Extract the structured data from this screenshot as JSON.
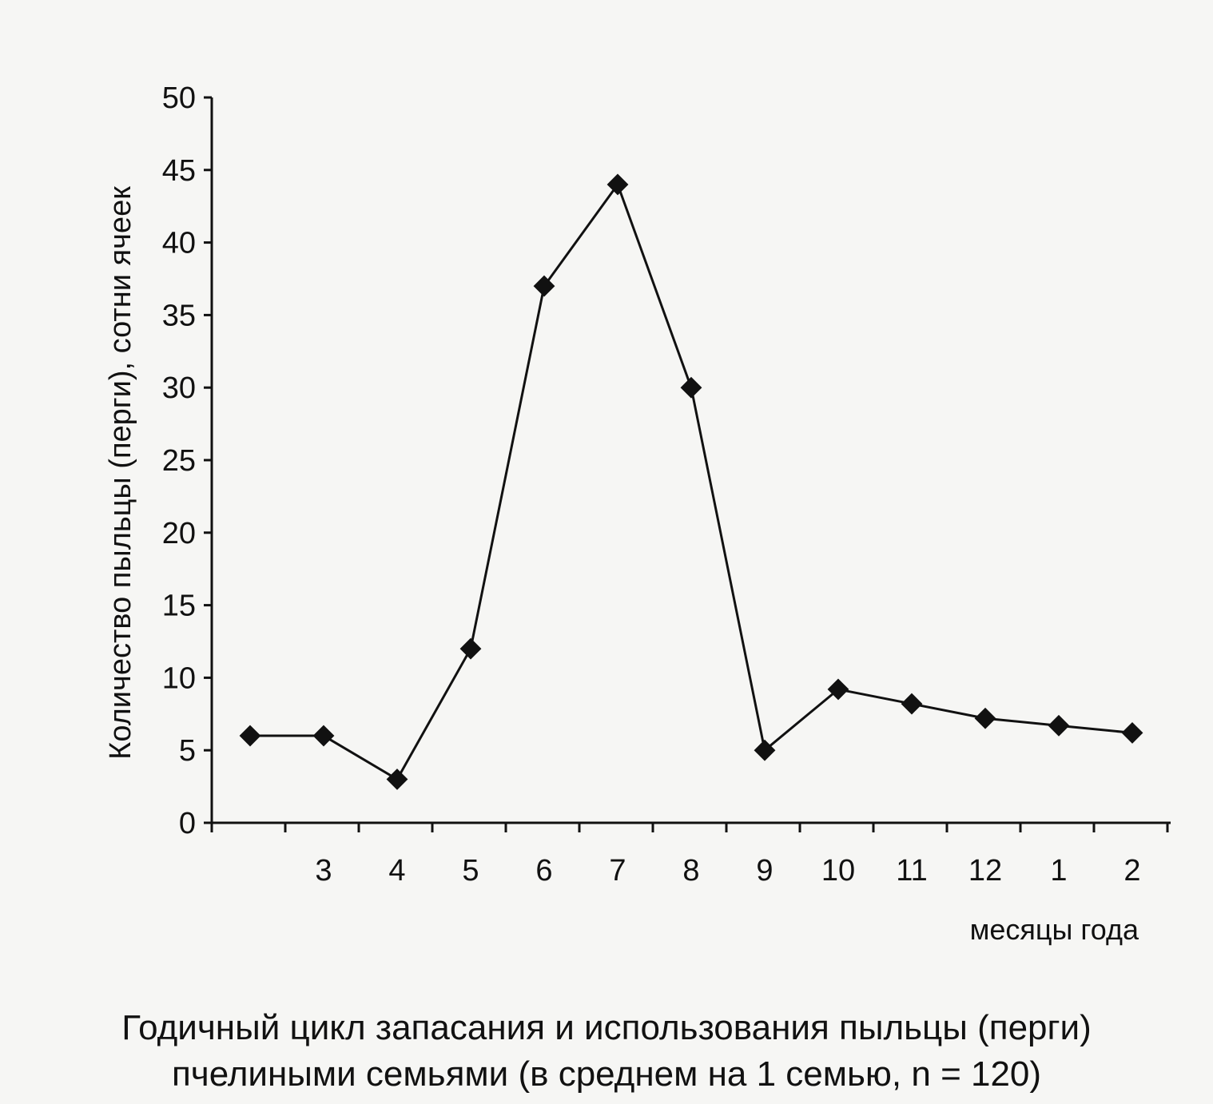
{
  "chart_data": {
    "type": "line",
    "ylabel": "Количество пыльцы (перги), сотни ячеек",
    "xlabel": "месяцы года",
    "ylim": [
      0,
      50
    ],
    "yticks": [
      0,
      5,
      10,
      15,
      20,
      25,
      30,
      35,
      40,
      45,
      50
    ],
    "categories": [
      "",
      "3",
      "4",
      "5",
      "6",
      "7",
      "8",
      "9",
      "10",
      "11",
      "12",
      "1",
      "2"
    ],
    "values": [
      6,
      6,
      3,
      12,
      37,
      44,
      30,
      5,
      9.2,
      8.2,
      7.2,
      6.7,
      6.2
    ],
    "marker": "diamond",
    "line_color": "#111111",
    "grid": false,
    "legend": "none"
  },
  "caption": {
    "line1": "Годичный цикл запасания и использования пыльцы (перги)",
    "line2": "пчелиными семьями (в среднем на 1 семью, n = 120)"
  }
}
